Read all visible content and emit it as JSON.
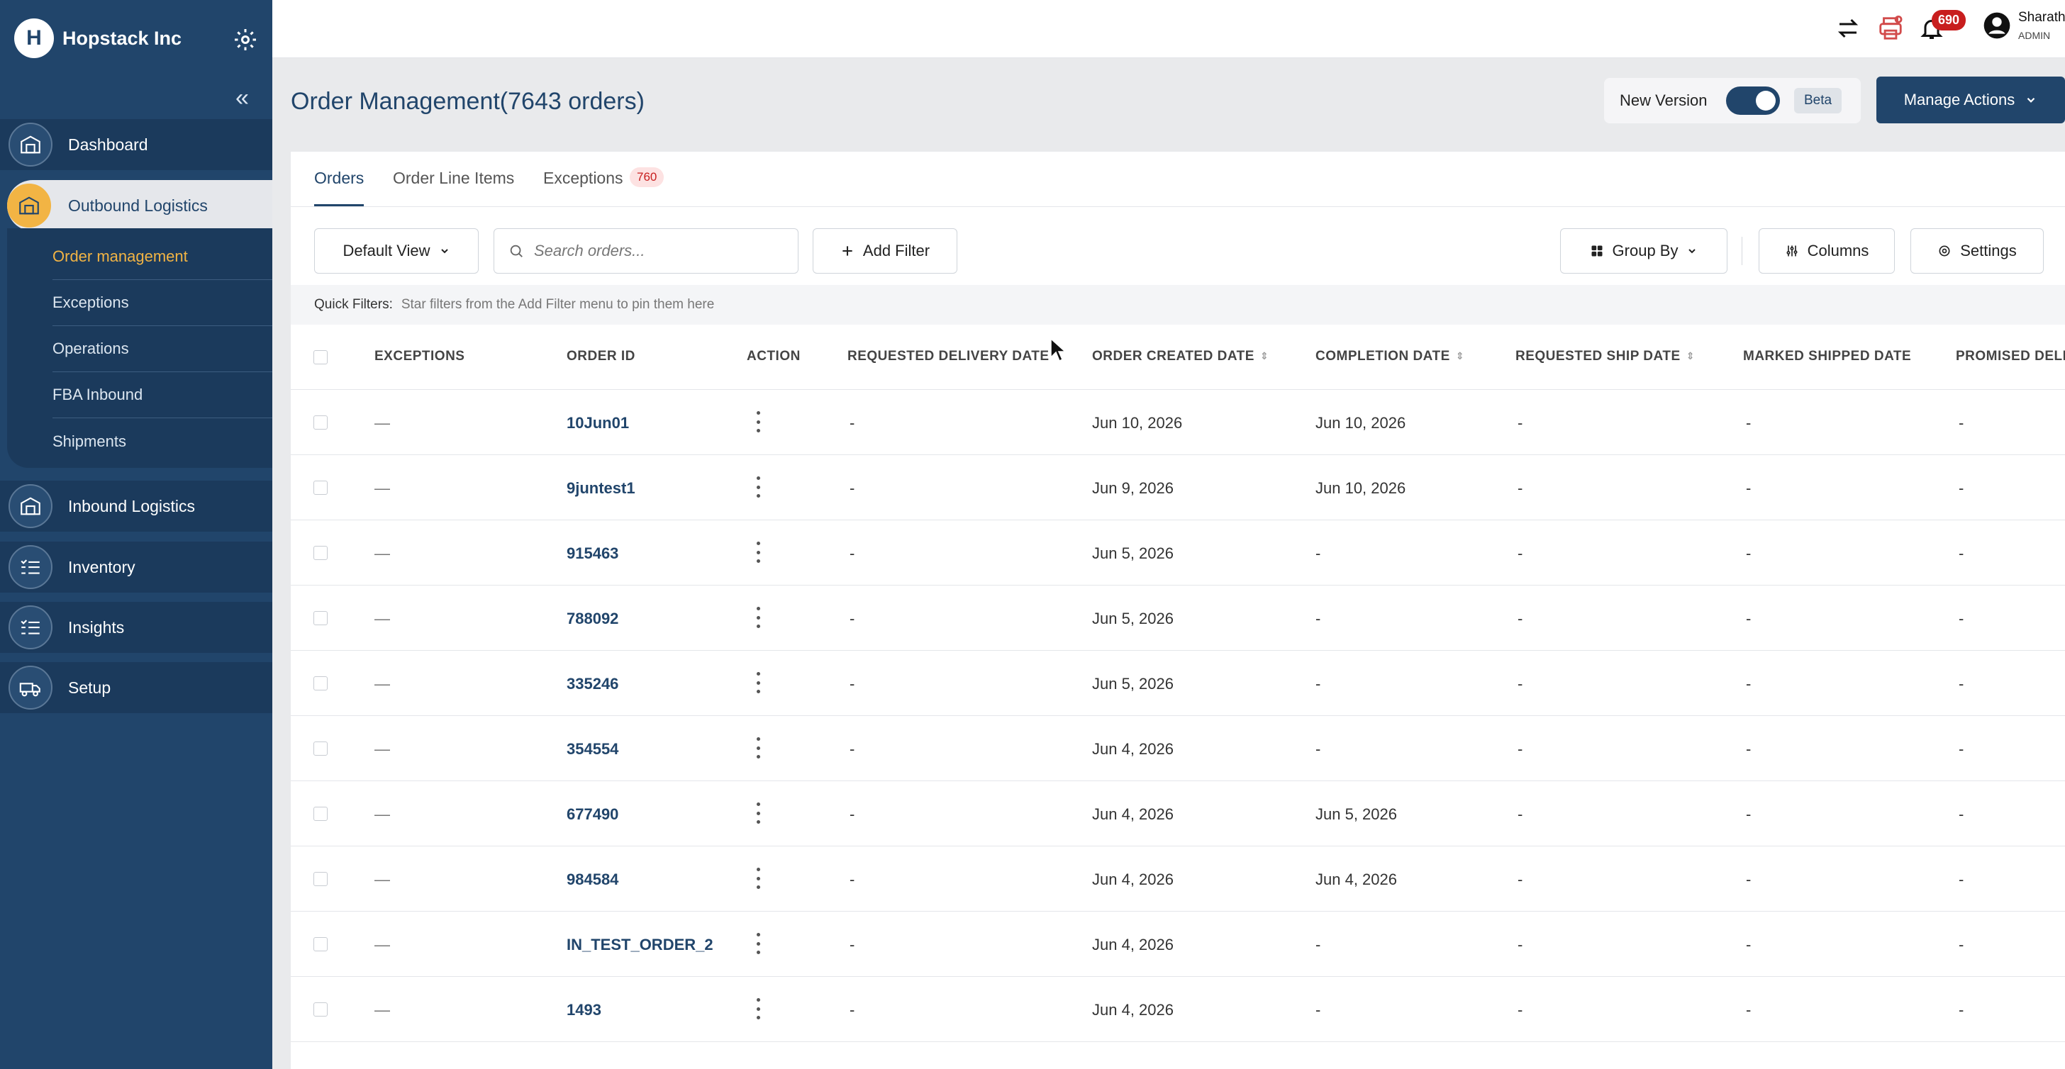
{
  "sidebar": {
    "brand_name": "Hopstack Inc",
    "brand_logo_letter": "H",
    "nav": [
      {
        "label": "Dashboard",
        "icon": "warehouse-icon"
      },
      {
        "label": "Outbound Logistics",
        "icon": "warehouse-icon"
      },
      {
        "label": "Inbound Logistics",
        "icon": "warehouse-icon"
      },
      {
        "label": "Inventory",
        "icon": "checklist-icon"
      },
      {
        "label": "Insights",
        "icon": "checklist-icon"
      },
      {
        "label": "Setup",
        "icon": "truck-icon"
      }
    ],
    "submenu": [
      "Order management",
      "Exceptions",
      "Operations",
      "FBA Inbound",
      "Shipments"
    ]
  },
  "topbar": {
    "notification_count": "690",
    "user_name": "Sharath",
    "user_role": "ADMIN"
  },
  "header": {
    "title": "Order Management(7643 orders)",
    "new_version_label": "New Version",
    "beta_label": "Beta",
    "manage_actions_label": "Manage Actions"
  },
  "tabs": [
    {
      "label": "Orders"
    },
    {
      "label": "Order Line Items"
    },
    {
      "label": "Exceptions",
      "badge": "760"
    }
  ],
  "toolbar": {
    "view_label": "Default View",
    "search_placeholder": "Search orders...",
    "add_filter_label": "Add Filter",
    "group_by_label": "Group By",
    "columns_label": "Columns",
    "settings_label": "Settings"
  },
  "quick_filters": {
    "label": "Quick Filters:",
    "hint": "Star filters from the Add Filter menu to pin them here"
  },
  "table": {
    "columns": [
      "EXCEPTIONS",
      "ORDER ID",
      "ACTION",
      "REQUESTED DELIVERY DATE",
      "ORDER CREATED DATE",
      "COMPLETION DATE",
      "REQUESTED SHIP DATE",
      "MARKED SHIPPED DATE",
      "PROMISED DELI"
    ],
    "rows": [
      {
        "exceptions": "—",
        "order_id": "10Jun01",
        "req_delivery": "-",
        "created": "Jun 10, 2026",
        "completion": "Jun 10, 2026",
        "req_ship": "-",
        "marked_shipped": "-",
        "promised": "-"
      },
      {
        "exceptions": "—",
        "order_id": "9juntest1",
        "req_delivery": "-",
        "created": "Jun 9, 2026",
        "completion": "Jun 10, 2026",
        "req_ship": "-",
        "marked_shipped": "-",
        "promised": "-"
      },
      {
        "exceptions": "—",
        "order_id": "915463",
        "req_delivery": "-",
        "created": "Jun 5, 2026",
        "completion": "-",
        "req_ship": "-",
        "marked_shipped": "-",
        "promised": "-"
      },
      {
        "exceptions": "—",
        "order_id": "788092",
        "req_delivery": "-",
        "created": "Jun 5, 2026",
        "completion": "-",
        "req_ship": "-",
        "marked_shipped": "-",
        "promised": "-"
      },
      {
        "exceptions": "—",
        "order_id": "335246",
        "req_delivery": "-",
        "created": "Jun 5, 2026",
        "completion": "-",
        "req_ship": "-",
        "marked_shipped": "-",
        "promised": "-"
      },
      {
        "exceptions": "—",
        "order_id": "354554",
        "req_delivery": "-",
        "created": "Jun 4, 2026",
        "completion": "-",
        "req_ship": "-",
        "marked_shipped": "-",
        "promised": "-"
      },
      {
        "exceptions": "—",
        "order_id": "677490",
        "req_delivery": "-",
        "created": "Jun 4, 2026",
        "completion": "Jun 5, 2026",
        "req_ship": "-",
        "marked_shipped": "-",
        "promised": "-"
      },
      {
        "exceptions": "—",
        "order_id": "984584",
        "req_delivery": "-",
        "created": "Jun 4, 2026",
        "completion": "Jun 4, 2026",
        "req_ship": "-",
        "marked_shipped": "-",
        "promised": "-"
      },
      {
        "exceptions": "—",
        "order_id": "IN_TEST_ORDER_2",
        "req_delivery": "-",
        "created": "Jun 4, 2026",
        "completion": "-",
        "req_ship": "-",
        "marked_shipped": "-",
        "promised": "-"
      },
      {
        "exceptions": "—",
        "order_id": "1493",
        "req_delivery": "-",
        "created": "Jun 4, 2026",
        "completion": "-",
        "req_ship": "-",
        "marked_shipped": "-",
        "promised": "-"
      }
    ]
  },
  "colors": {
    "brand": "#21456b",
    "accent": "#f2b444",
    "alert": "#c81e1e"
  }
}
